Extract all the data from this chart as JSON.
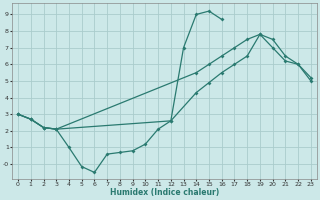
{
  "xlabel": "Humidex (Indice chaleur)",
  "bg_color": "#cce8e8",
  "grid_color": "#aacccc",
  "line_color": "#2a7a70",
  "xlim": [
    -0.5,
    23.5
  ],
  "ylim": [
    -0.9,
    9.7
  ],
  "xticks": [
    0,
    1,
    2,
    3,
    4,
    5,
    6,
    7,
    8,
    9,
    10,
    11,
    12,
    13,
    14,
    15,
    16,
    17,
    18,
    19,
    20,
    21,
    22,
    23
  ],
  "yticks": [
    0,
    1,
    2,
    3,
    4,
    5,
    6,
    7,
    8,
    9
  ],
  "ytick_labels": [
    "-0",
    "1",
    "2",
    "3",
    "4",
    "5",
    "6",
    "7",
    "8",
    "9"
  ],
  "line1_x": [
    0,
    1,
    2,
    3,
    4,
    5,
    6,
    7,
    8,
    9,
    10,
    11,
    12,
    13,
    14,
    15,
    16
  ],
  "line1_y": [
    3.0,
    2.7,
    2.2,
    2.1,
    1.0,
    -0.15,
    -0.5,
    0.6,
    0.7,
    0.8,
    1.2,
    2.1,
    2.6,
    7.0,
    9.0,
    9.2,
    8.7
  ],
  "line2_x": [
    0,
    1,
    2,
    3,
    12,
    14,
    15,
    16,
    17,
    18,
    19,
    20,
    21,
    22,
    23
  ],
  "line2_y": [
    3.0,
    2.7,
    2.2,
    2.1,
    2.6,
    4.3,
    4.9,
    5.5,
    6.0,
    6.5,
    7.8,
    7.0,
    6.2,
    6.0,
    5.0
  ],
  "line3_x": [
    0,
    1,
    2,
    3,
    14,
    15,
    16,
    17,
    18,
    19,
    20,
    21,
    22,
    23
  ],
  "line3_y": [
    3.0,
    2.7,
    2.2,
    2.1,
    5.5,
    6.0,
    6.5,
    7.0,
    7.5,
    7.8,
    7.5,
    6.5,
    6.0,
    5.2
  ]
}
